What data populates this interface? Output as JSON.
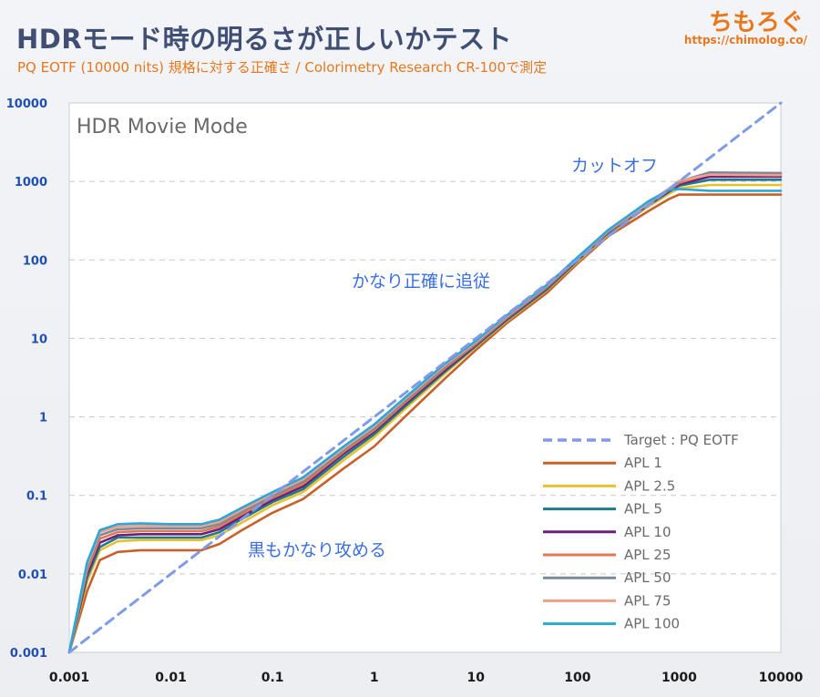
{
  "header": {
    "title": "HDRモード時の明るさが正しいかテスト",
    "subtitle": "PQ EOTF (10000 nits) 規格に対する正確さ / Colorimetry Research CR-100で測定",
    "brand": "ちもろぐ",
    "brand_url": "https://chimolog.co/"
  },
  "chart_data": {
    "type": "line",
    "title": "HDR Movie Mode",
    "xscale": "log",
    "yscale": "log",
    "xlim": [
      0.001,
      10000
    ],
    "ylim": [
      0.001,
      10000
    ],
    "x_ticks": [
      "0.001",
      "0.01",
      "0.1",
      "1",
      "10",
      "100",
      "1000",
      "10000"
    ],
    "y_ticks": [
      "0.001",
      "0.01",
      "0.1",
      "1",
      "10",
      "100",
      "1000",
      "10000"
    ],
    "grid": true,
    "legend_position": "bottom-right",
    "annotations": [
      "カットオフ",
      "かなり正確に追従",
      "黒もかなり攻める"
    ],
    "series": [
      {
        "name": "Target : PQ EOTF",
        "color": "#7f9be8",
        "dashed": true,
        "x": [
          0.001,
          10000
        ],
        "y": [
          0.001,
          10000
        ]
      },
      {
        "name": "APL 1",
        "color": "#c8602a",
        "x": [
          0.001,
          0.0015,
          0.002,
          0.003,
          0.005,
          0.01,
          0.02,
          0.03,
          0.05,
          0.1,
          0.2,
          0.5,
          1,
          2,
          5,
          10,
          20,
          50,
          100,
          200,
          500,
          800,
          1000,
          2000,
          10000
        ],
        "y": [
          0.001,
          0.006,
          0.015,
          0.019,
          0.02,
          0.02,
          0.02,
          0.024,
          0.036,
          0.06,
          0.09,
          0.22,
          0.42,
          1.0,
          3.1,
          7.1,
          15.5,
          38,
          90,
          200,
          420,
          600,
          680,
          680,
          680
        ]
      },
      {
        "name": "APL 2.5",
        "color": "#e9c130",
        "x": [
          0.001,
          0.0015,
          0.002,
          0.003,
          0.005,
          0.01,
          0.02,
          0.03,
          0.05,
          0.1,
          0.2,
          0.5,
          1,
          2,
          5,
          10,
          20,
          50,
          100,
          200,
          500,
          800,
          1000,
          2000,
          10000
        ],
        "y": [
          0.001,
          0.008,
          0.02,
          0.026,
          0.027,
          0.027,
          0.027,
          0.031,
          0.045,
          0.075,
          0.11,
          0.28,
          0.55,
          1.25,
          3.6,
          7.8,
          16.5,
          41,
          95,
          210,
          480,
          700,
          820,
          900,
          900
        ]
      },
      {
        "name": "APL 5",
        "color": "#1f7a8c",
        "x": [
          0.001,
          0.0015,
          0.002,
          0.003,
          0.005,
          0.01,
          0.02,
          0.03,
          0.05,
          0.1,
          0.2,
          0.5,
          1,
          2,
          5,
          10,
          20,
          50,
          100,
          200,
          500,
          800,
          1000,
          2000,
          10000
        ],
        "y": [
          0.001,
          0.009,
          0.022,
          0.029,
          0.029,
          0.029,
          0.029,
          0.034,
          0.05,
          0.082,
          0.12,
          0.31,
          0.6,
          1.35,
          3.8,
          8.0,
          17,
          42,
          98,
          220,
          500,
          740,
          880,
          1050,
          1050
        ]
      },
      {
        "name": "APL 10",
        "color": "#6a1f7a",
        "x": [
          0.001,
          0.0015,
          0.002,
          0.003,
          0.005,
          0.01,
          0.02,
          0.03,
          0.05,
          0.1,
          0.2,
          0.5,
          1,
          2,
          5,
          10,
          20,
          50,
          100,
          200,
          500,
          800,
          1000,
          2000,
          10000
        ],
        "y": [
          0.001,
          0.01,
          0.025,
          0.031,
          0.032,
          0.032,
          0.032,
          0.037,
          0.054,
          0.088,
          0.13,
          0.34,
          0.65,
          1.45,
          4.0,
          8.3,
          17.5,
          44,
          100,
          225,
          510,
          760,
          920,
          1150,
          1150
        ]
      },
      {
        "name": "APL 25",
        "color": "#e07850",
        "x": [
          0.001,
          0.0015,
          0.002,
          0.003,
          0.005,
          0.01,
          0.02,
          0.03,
          0.05,
          0.1,
          0.2,
          0.5,
          1,
          2,
          5,
          10,
          20,
          50,
          100,
          200,
          500,
          800,
          1000,
          2000,
          10000
        ],
        "y": [
          0.001,
          0.011,
          0.028,
          0.034,
          0.035,
          0.035,
          0.035,
          0.04,
          0.058,
          0.093,
          0.14,
          0.36,
          0.68,
          1.52,
          4.2,
          8.5,
          18,
          45,
          102,
          228,
          520,
          780,
          960,
          1250,
          1250
        ]
      },
      {
        "name": "APL 50",
        "color": "#7a8a9a",
        "x": [
          0.001,
          0.0015,
          0.002,
          0.003,
          0.005,
          0.01,
          0.02,
          0.03,
          0.05,
          0.1,
          0.2,
          0.5,
          1,
          2,
          5,
          10,
          20,
          50,
          100,
          200,
          500,
          800,
          1000,
          2000,
          10000
        ],
        "y": [
          0.001,
          0.012,
          0.031,
          0.037,
          0.038,
          0.038,
          0.038,
          0.043,
          0.062,
          0.098,
          0.15,
          0.38,
          0.72,
          1.6,
          4.4,
          8.8,
          18.5,
          46,
          104,
          232,
          530,
          800,
          1000,
          1300,
          1280
        ]
      },
      {
        "name": "APL 75",
        "color": "#f2a08a",
        "x": [
          0.001,
          0.0015,
          0.002,
          0.003,
          0.005,
          0.01,
          0.02,
          0.03,
          0.05,
          0.1,
          0.2,
          0.5,
          1,
          2,
          5,
          10,
          20,
          50,
          100,
          200,
          500,
          800,
          1000,
          2000,
          10000
        ],
        "y": [
          0.001,
          0.013,
          0.034,
          0.04,
          0.041,
          0.041,
          0.041,
          0.046,
          0.066,
          0.104,
          0.16,
          0.4,
          0.76,
          1.68,
          4.6,
          9.0,
          19,
          47,
          106,
          236,
          540,
          820,
          1020,
          1220,
          1200
        ]
      },
      {
        "name": "APL 100",
        "color": "#2ba6d8",
        "x": [
          0.001,
          0.0015,
          0.002,
          0.003,
          0.005,
          0.01,
          0.02,
          0.03,
          0.05,
          0.1,
          0.2,
          0.5,
          1,
          2,
          5,
          10,
          20,
          50,
          100,
          200,
          500,
          800,
          1000,
          2000,
          10000
        ],
        "y": [
          0.001,
          0.014,
          0.036,
          0.043,
          0.044,
          0.043,
          0.043,
          0.049,
          0.07,
          0.11,
          0.17,
          0.42,
          0.8,
          1.75,
          4.8,
          9.3,
          19.5,
          48,
          108,
          240,
          560,
          780,
          800,
          760,
          760
        ]
      }
    ]
  }
}
